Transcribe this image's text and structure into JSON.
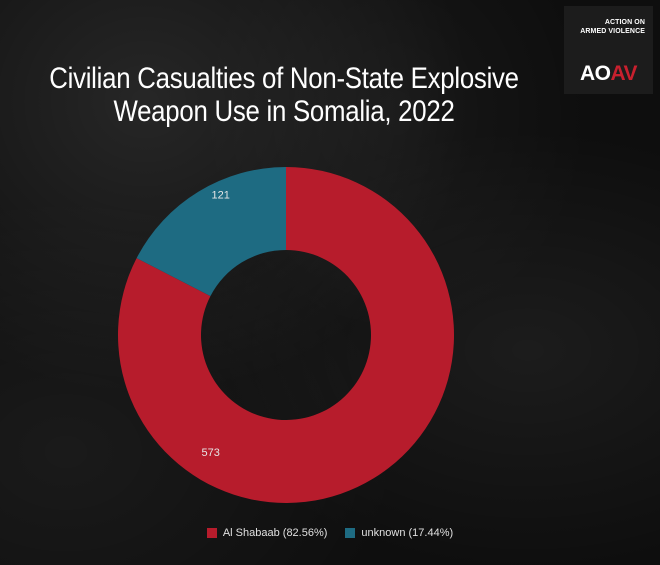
{
  "title": {
    "line1": "Civilian Casualties of Non-State Explosive",
    "line2": "Weapon Use in Somalia, 2022"
  },
  "logo": {
    "line1": "ACTION ON",
    "line2": "ARMED VIOLENCE",
    "mark_left": "AO",
    "mark_right": "AV"
  },
  "colors": {
    "al_shabaab": "#b71c2c",
    "unknown": "#1e6b82",
    "logo_accent": "#c8202e"
  },
  "legend": [
    {
      "label": "Al Shabaab (82.56%)"
    },
    {
      "label": "unknown (17.44%)"
    }
  ],
  "chart_data": {
    "type": "pie",
    "style": "donut",
    "title": "Civilian Casualties of Non-State Explosive Weapon Use in Somalia, 2022",
    "categories": [
      "Al Shabaab",
      "unknown"
    ],
    "values": [
      573,
      121
    ],
    "percentages": [
      82.56,
      17.44
    ],
    "data_labels": [
      "573",
      "121"
    ],
    "legend_labels": [
      "Al Shabaab (82.56%)",
      "unknown (17.44%)"
    ],
    "legend_position": "bottom",
    "start_angle_deg": 0,
    "direction": "clockwise"
  }
}
